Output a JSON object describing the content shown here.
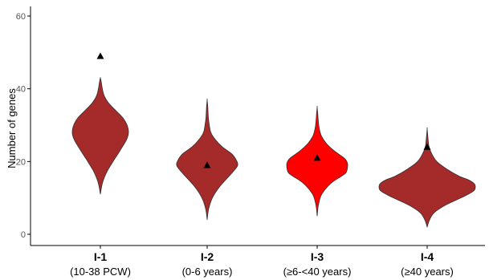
{
  "chart_data": {
    "type": "violin",
    "ylabel": "Number of genes",
    "ylim": [
      0,
      60
    ],
    "yticks": [
      0,
      20,
      40,
      60
    ],
    "grid": false,
    "categories": [
      {
        "label": "I-1",
        "sublabel": "(10-38 PCW)"
      },
      {
        "label": "I-2",
        "sublabel": "(0-6 years)"
      },
      {
        "label": "I-3",
        "sublabel": "(≥6-<40 years)"
      },
      {
        "label": "I-4",
        "sublabel": "(≥40 years)"
      }
    ],
    "violins": [
      {
        "min": 11,
        "max": 43,
        "mode": 28,
        "color": "#a52a2a",
        "profile": [
          [
            11,
            0.0
          ],
          [
            14,
            0.07
          ],
          [
            17,
            0.22
          ],
          [
            20,
            0.45
          ],
          [
            23,
            0.7
          ],
          [
            26,
            0.93
          ],
          [
            28,
            1.0
          ],
          [
            30,
            0.95
          ],
          [
            32,
            0.8
          ],
          [
            34,
            0.55
          ],
          [
            36,
            0.3
          ],
          [
            38,
            0.14
          ],
          [
            40,
            0.07
          ],
          [
            42,
            0.03
          ],
          [
            43,
            0.0
          ]
        ]
      },
      {
        "min": 4,
        "max": 37,
        "mode": 19,
        "color": "#a52a2a",
        "profile": [
          [
            4,
            0.0
          ],
          [
            7,
            0.05
          ],
          [
            10,
            0.17
          ],
          [
            13,
            0.4
          ],
          [
            16,
            0.72
          ],
          [
            18,
            0.93
          ],
          [
            19,
            1.0
          ],
          [
            20,
            0.98
          ],
          [
            22,
            0.82
          ],
          [
            24,
            0.5
          ],
          [
            26,
            0.27
          ],
          [
            28,
            0.12
          ],
          [
            30,
            0.07
          ],
          [
            32,
            0.04
          ],
          [
            35,
            0.02
          ],
          [
            37,
            0.0
          ]
        ]
      },
      {
        "min": 5,
        "max": 35,
        "mode": 19,
        "color": "#ff0000",
        "profile": [
          [
            5,
            0.0
          ],
          [
            8,
            0.04
          ],
          [
            11,
            0.15
          ],
          [
            14,
            0.45
          ],
          [
            16,
            0.8
          ],
          [
            17,
            0.95
          ],
          [
            19,
            1.0
          ],
          [
            20,
            0.97
          ],
          [
            21,
            0.88
          ],
          [
            23,
            0.55
          ],
          [
            25,
            0.3
          ],
          [
            27,
            0.14
          ],
          [
            29,
            0.07
          ],
          [
            31,
            0.04
          ],
          [
            33,
            0.02
          ],
          [
            35,
            0.0
          ]
        ]
      },
      {
        "min": 2,
        "max": 29,
        "mode": 13,
        "color": "#a52a2a",
        "profile": [
          [
            2,
            0.0
          ],
          [
            4,
            0.05
          ],
          [
            6,
            0.15
          ],
          [
            8,
            0.38
          ],
          [
            10,
            0.7
          ],
          [
            11,
            0.85
          ],
          [
            12,
            0.97
          ],
          [
            13,
            1.0
          ],
          [
            14,
            0.97
          ],
          [
            15,
            0.85
          ],
          [
            16,
            0.66
          ],
          [
            18,
            0.4
          ],
          [
            20,
            0.2
          ],
          [
            22,
            0.1
          ],
          [
            24,
            0.04
          ],
          [
            26,
            0.02
          ],
          [
            29,
            0.0
          ]
        ]
      }
    ],
    "observed": [
      49,
      19,
      21,
      24
    ],
    "colors": {
      "axis": "#000000",
      "marker": "#000000",
      "outline": "#333333"
    }
  }
}
